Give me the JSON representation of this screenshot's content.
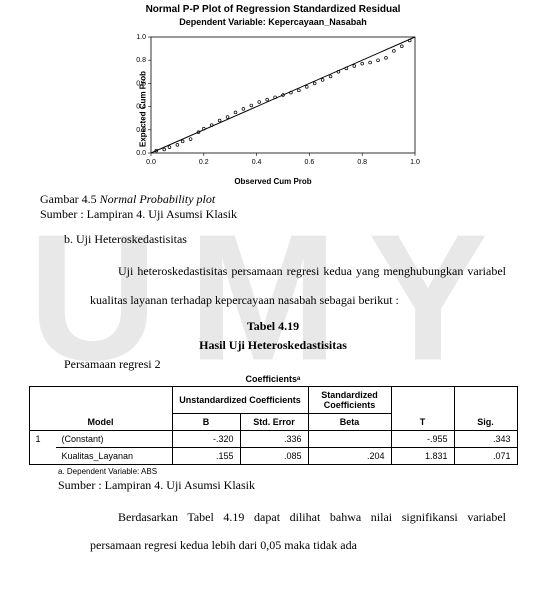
{
  "watermark": "UMY",
  "chart": {
    "title": "Normal P-P Plot of Regression Standardized Residual",
    "subtitle": "Dependent Variable: Kepercayaan_Nasabah",
    "y_label": "Expected Cum Prob",
    "x_label": "Observed Cum Prob",
    "x_ticks": [
      "0.0",
      "0.2",
      "0.4",
      "0.6",
      "0.8",
      "1.0"
    ],
    "y_ticks": [
      "0.0",
      "0.2",
      "0.4",
      "0.6",
      "0.8",
      "1.0"
    ],
    "line_color": "#000000",
    "point_color": "#000000",
    "grid_color": "#000000",
    "background": "#ffffff",
    "points": [
      [
        0.02,
        0.02
      ],
      [
        0.05,
        0.03
      ],
      [
        0.07,
        0.05
      ],
      [
        0.1,
        0.07
      ],
      [
        0.12,
        0.1
      ],
      [
        0.15,
        0.12
      ],
      [
        0.18,
        0.18
      ],
      [
        0.2,
        0.21
      ],
      [
        0.23,
        0.24
      ],
      [
        0.26,
        0.28
      ],
      [
        0.29,
        0.31
      ],
      [
        0.32,
        0.35
      ],
      [
        0.35,
        0.38
      ],
      [
        0.38,
        0.41
      ],
      [
        0.41,
        0.44
      ],
      [
        0.44,
        0.46
      ],
      [
        0.47,
        0.48
      ],
      [
        0.5,
        0.5
      ],
      [
        0.53,
        0.52
      ],
      [
        0.56,
        0.54
      ],
      [
        0.59,
        0.57
      ],
      [
        0.62,
        0.6
      ],
      [
        0.65,
        0.63
      ],
      [
        0.68,
        0.66
      ],
      [
        0.71,
        0.7
      ],
      [
        0.74,
        0.73
      ],
      [
        0.77,
        0.75
      ],
      [
        0.8,
        0.77
      ],
      [
        0.83,
        0.78
      ],
      [
        0.86,
        0.8
      ],
      [
        0.89,
        0.82
      ],
      [
        0.92,
        0.88
      ],
      [
        0.95,
        0.92
      ],
      [
        0.98,
        0.97
      ]
    ]
  },
  "caption_prefix": "Gambar 4.5 ",
  "caption_italic": "Normal Probability plot",
  "source1": "Sumber : Lampiran 4. Uji Asumsi Klasik",
  "section_b": "b.  Uji Heteroskedastisitas",
  "para1_a": "Uji heteroskedastisitas persamaan regresi kedua yang",
  "para1_b": "menghubungkan variabel kualitas layanan terhadap kepercayaan",
  "para1_c": "nasabah sebagai berikut :",
  "table_num": "Tabel 4.19",
  "table_name": "Hasil Uji Heteroskedastisitas",
  "pers": "Persamaan regresi 2",
  "coef_title": "Coefficientsᵃ",
  "coef": {
    "headers": {
      "model": "Model",
      "unstd": "Unstandardized Coefficients",
      "std": "Standardized Coefficients",
      "b": "B",
      "se": "Std. Error",
      "beta": "Beta",
      "t": "T",
      "sig": "Sig."
    },
    "rows": [
      {
        "num": "1",
        "label": "(Constant)",
        "b": "-.320",
        "se": ".336",
        "beta": "",
        "t": "-.955",
        "sig": ".343"
      },
      {
        "num": "",
        "label": "Kualitas_Layanan",
        "b": ".155",
        "se": ".085",
        "beta": ".204",
        "t": "1.831",
        "sig": ".071"
      }
    ]
  },
  "dep_note": "a. Dependent Variable: ABS",
  "source2": "Sumber : Lampiran 4. Uji Asumsi Klasik",
  "para2_a": "Berdasarkan Tabel 4.19 dapat dilihat bahwa nilai signifikansi",
  "para2_b": "variabel persamaan regresi kedua lebih dari 0,05 maka tidak ada"
}
